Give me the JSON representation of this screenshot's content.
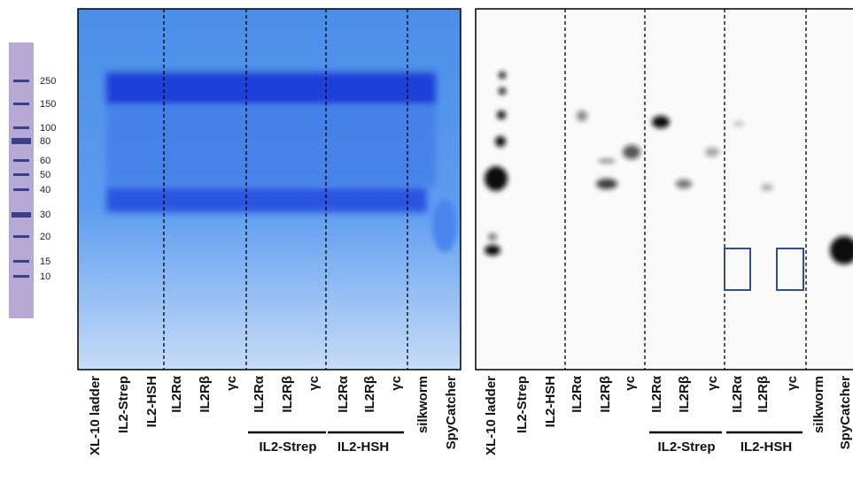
{
  "ladder": {
    "labels": [
      "250",
      "150",
      "100",
      "80",
      "60",
      "50",
      "40",
      "30",
      "20",
      "15",
      "10"
    ]
  },
  "left_gel": {
    "lanes": [
      "XL-10 ladder",
      "IL2-Strep",
      "IL2-HSH",
      "IL2Rα",
      "IL2Rβ",
      "γc",
      "IL2Rα",
      "IL2Rβ",
      "γc",
      "IL2Rα",
      "IL2Rβ",
      "γc",
      "silkworm",
      "SpyCatcher"
    ],
    "groups": [
      "IL2-Strep",
      "IL2-HSH"
    ]
  },
  "right_gel": {
    "lanes": [
      "XL-10 ladder",
      "IL2-Strep",
      "IL2-HSH",
      "IL2Rα",
      "IL2Rβ",
      "γc",
      "IL2Rα",
      "IL2Rβ",
      "γc",
      "IL2Rα",
      "IL2Rβ",
      "γc",
      "silkworm",
      "SpyCatcher"
    ],
    "groups": [
      "IL2-Strep",
      "IL2-HSH"
    ]
  }
}
